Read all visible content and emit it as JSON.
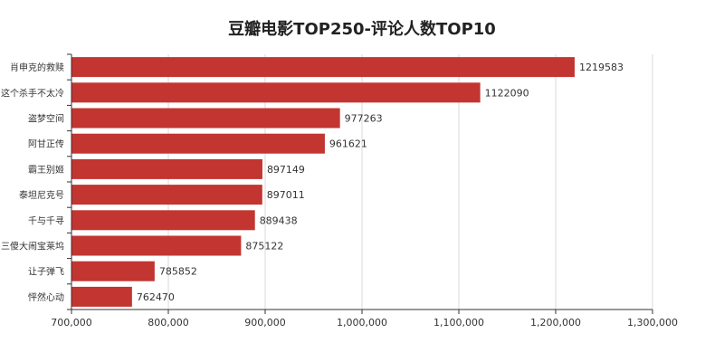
{
  "chart_data": {
    "type": "bar",
    "orientation": "horizontal",
    "title": "豆瓣电影TOP250-评论人数TOP10",
    "xlabel": "",
    "ylabel": "",
    "categories": [
      "肖申克的救赎",
      "这个杀手不太冷",
      "盗梦空间",
      "阿甘正传",
      "霸王别姬",
      "泰坦尼克号",
      "千与千寻",
      "三傻大闹宝莱坞",
      "让子弹飞",
      "怦然心动"
    ],
    "values": [
      1219583,
      1122090,
      977263,
      961621,
      897149,
      897011,
      889438,
      875122,
      785852,
      762470
    ],
    "xlim": [
      700000,
      1300000
    ],
    "xticks": [
      700000,
      800000,
      900000,
      1000000,
      1100000,
      1200000,
      1300000
    ],
    "xtick_labels": [
      "700,000",
      "800,000",
      "900,000",
      "1,000,000",
      "1,100,000",
      "1,200,000",
      "1,300,000"
    ],
    "grid": true,
    "bar_color": "#c23531",
    "legend": "none"
  }
}
